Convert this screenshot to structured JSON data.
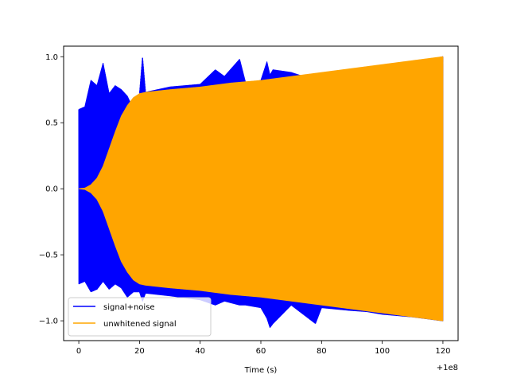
{
  "chart_data": {
    "type": "line",
    "title": "",
    "xlabel": "Time (s)",
    "ylabel": "",
    "offset_text": "+1e8",
    "xlim": [
      -5,
      125
    ],
    "ylim": [
      -1.15,
      1.08
    ],
    "x_ticks": [
      0,
      20,
      40,
      60,
      80,
      100,
      120
    ],
    "x_tick_labels": [
      "0",
      "20",
      "40",
      "60",
      "80",
      "100",
      "120"
    ],
    "y_ticks": [
      1.0,
      0.5,
      0.0,
      -0.5,
      -1.0
    ],
    "y_tick_labels": [
      "1.0",
      "0.5",
      "0.0",
      "−0.5",
      "−1.0"
    ],
    "grid": false,
    "legend_position": "lower-left",
    "series": [
      {
        "name": "signal+noise",
        "color": "#0000ff",
        "x": [
          0,
          2,
          4,
          6,
          8,
          10,
          12,
          14,
          16,
          18,
          20,
          21,
          22,
          30,
          40,
          45,
          48,
          53,
          55,
          60,
          62,
          63,
          64,
          70,
          78,
          80,
          89,
          95,
          100,
          110,
          120
        ],
        "upper": [
          0.6,
          0.62,
          0.82,
          0.78,
          0.95,
          0.72,
          0.78,
          0.75,
          0.7,
          0.6,
          0.72,
          1.0,
          0.73,
          0.77,
          0.79,
          0.9,
          0.85,
          0.98,
          0.8,
          0.82,
          0.96,
          0.86,
          0.9,
          0.88,
          0.82,
          0.85,
          0.9,
          0.88,
          0.93,
          0.95,
          1.0
        ],
        "lower": [
          -0.72,
          -0.7,
          -0.78,
          -0.76,
          -0.7,
          -0.76,
          -0.72,
          -0.75,
          -0.82,
          -0.78,
          -0.78,
          -0.85,
          -0.79,
          -0.81,
          -0.84,
          -0.88,
          -0.85,
          -0.88,
          -0.88,
          -0.9,
          -0.98,
          -1.05,
          -1.02,
          -0.88,
          -1.02,
          -0.9,
          -0.92,
          -0.93,
          -0.95,
          -0.97,
          -1.0
        ]
      },
      {
        "name": "unwhitened signal",
        "color": "#ffa500",
        "x": [
          0,
          2,
          4,
          6,
          8,
          10,
          12,
          14,
          16,
          18,
          20,
          22,
          30,
          40,
          50,
          60,
          70,
          80,
          90,
          100,
          110,
          120
        ],
        "upper": [
          0.0,
          0.005,
          0.03,
          0.08,
          0.17,
          0.3,
          0.43,
          0.55,
          0.63,
          0.69,
          0.72,
          0.73,
          0.75,
          0.77,
          0.8,
          0.82,
          0.85,
          0.88,
          0.91,
          0.94,
          0.97,
          1.0
        ],
        "lower": [
          0.0,
          -0.005,
          -0.03,
          -0.08,
          -0.17,
          -0.3,
          -0.43,
          -0.55,
          -0.63,
          -0.69,
          -0.72,
          -0.73,
          -0.75,
          -0.77,
          -0.8,
          -0.82,
          -0.85,
          -0.88,
          -0.91,
          -0.94,
          -0.97,
          -1.0
        ]
      }
    ]
  }
}
